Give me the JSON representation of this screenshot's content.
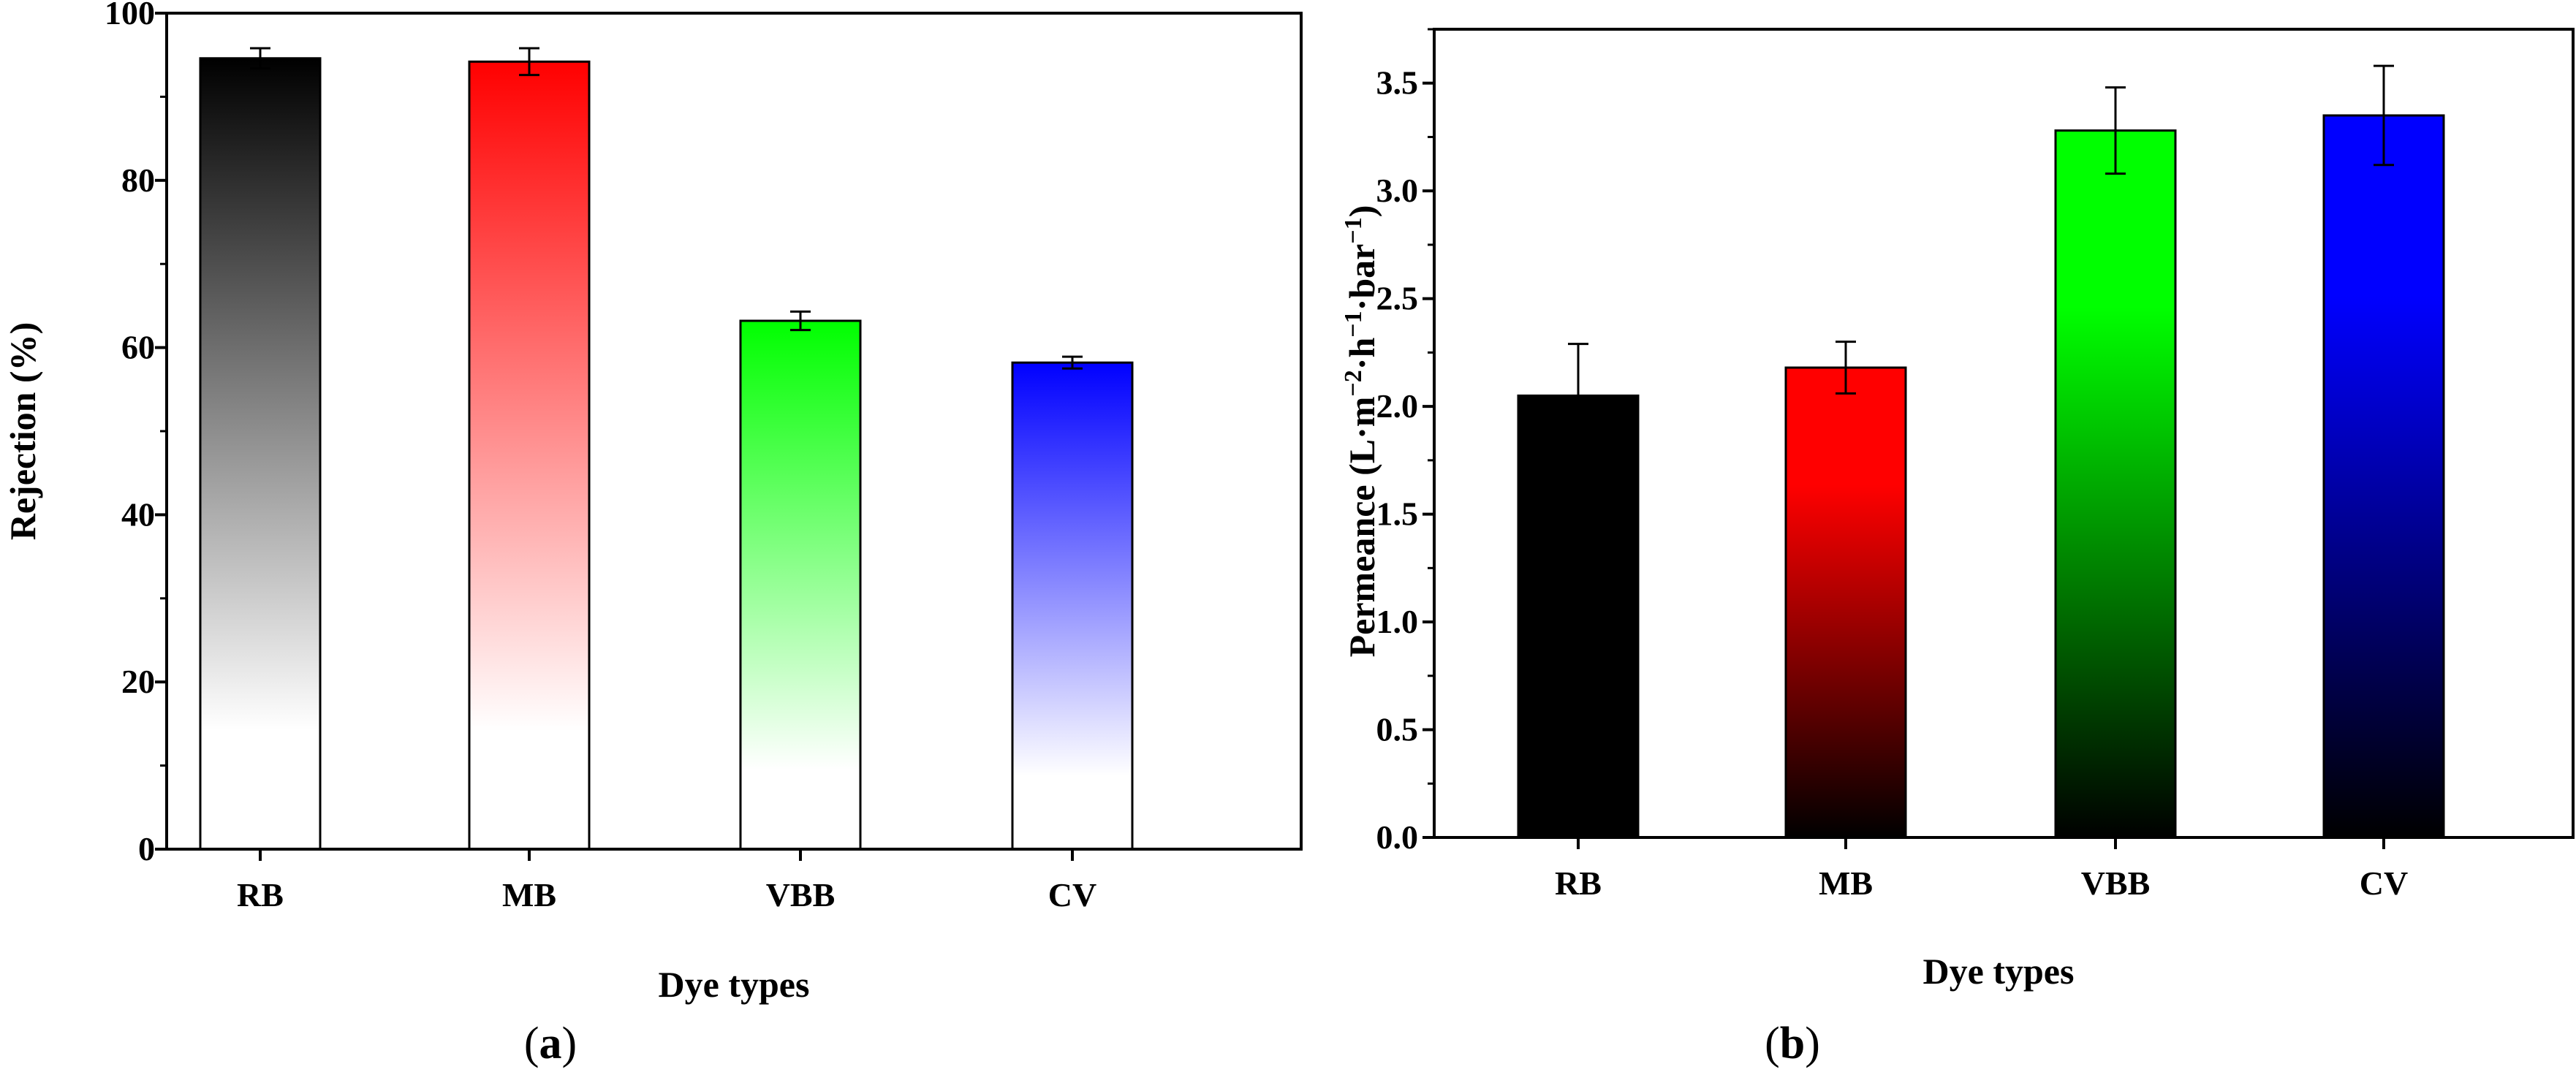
{
  "chart_data": [
    {
      "type": "bar",
      "panel_label": "a",
      "categories": [
        "RB",
        "MB",
        "VBB",
        "CV"
      ],
      "values": [
        94.6,
        94.2,
        63.2,
        58.2
      ],
      "errors": [
        1.2,
        1.6,
        1.1,
        0.7
      ],
      "colors": [
        "#000000",
        "#ff0000",
        "#00ff00",
        "#0000ff"
      ],
      "gradient": "color-top-to-white-bottom",
      "xlabel": "Dye types",
      "ylabel": "Rejection (%)",
      "ylim": [
        0,
        100
      ],
      "yticks": [
        0,
        20,
        40,
        60,
        80,
        100
      ],
      "ytick_labels": [
        "0",
        "20",
        "40",
        "60",
        "80",
        "100"
      ]
    },
    {
      "type": "bar",
      "panel_label": "b",
      "categories": [
        "RB",
        "MB",
        "VBB",
        "CV"
      ],
      "values": [
        2.05,
        2.18,
        3.28,
        3.35
      ],
      "errors": [
        0.24,
        0.12,
        0.2,
        0.23
      ],
      "colors": [
        "#000000",
        "#ff0000",
        "#00ff00",
        "#0000ff"
      ],
      "gradient": "color-top-to-black-bottom",
      "xlabel": "Dye types",
      "ylabel": {
        "prefix": "Permeance (L·m",
        "sup1": "−2",
        "mid1": "·h",
        "sup2": "−1",
        "mid2": "·bar",
        "sup3": "−1",
        "suffix": ")"
      },
      "ylim": [
        0,
        3.75
      ],
      "yticks": [
        0,
        0.5,
        1,
        1.5,
        2,
        2.5,
        3,
        3.5
      ],
      "ytick_labels": [
        "0.0",
        "0.5",
        "1.0",
        "1.5",
        "2.0",
        "2.5",
        "3.0",
        "3.5"
      ]
    }
  ]
}
